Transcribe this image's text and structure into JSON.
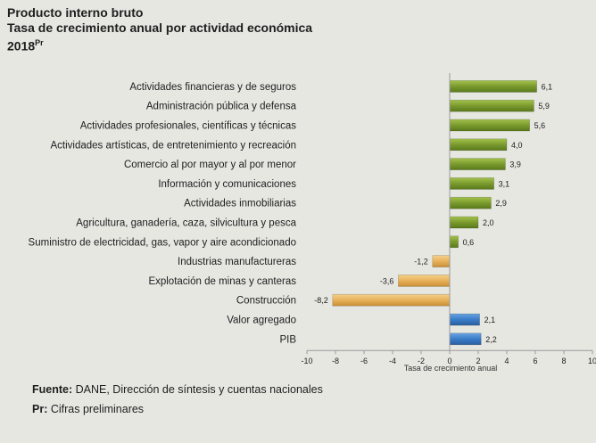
{
  "header": {
    "title": "Producto interno bruto",
    "subtitle": "Tasa de crecimiento anual por actividad económica",
    "year": "2018",
    "year_superscript": "Pr"
  },
  "footer": {
    "source_label": "Fuente:",
    "source_text": "DANE, Dirección de síntesis y cuentas nacionales",
    "note_label": "Pr:",
    "note_text": "Cifras preliminares"
  },
  "colors": {
    "positive": "#7a9a2e",
    "negative": "#e8b25a",
    "aggregate": "#3a7cc9"
  },
  "chart_data": {
    "type": "bar",
    "orientation": "horizontal",
    "title": "Tasa de crecimiento anual por actividad económica",
    "xlabel": "Tasa de crecimiento anual",
    "ylabel": "",
    "xlim": [
      -10,
      10
    ],
    "xticks": [
      -10,
      -8,
      -6,
      -4,
      -2,
      0,
      2,
      4,
      6,
      8,
      10
    ],
    "xtick_labels": [
      "-10",
      "-8",
      "-6",
      "-4",
      "-2",
      "0",
      "2",
      "4",
      "6",
      "8",
      "10"
    ],
    "categories": [
      "Actividades financieras y de seguros",
      "Administración pública y defensa",
      "Actividades profesionales, científicas y técnicas",
      "Actividades artísticas, de entretenimiento y recreación",
      "Comercio al por mayor y al por menor",
      "Información y comunicaciones",
      "Actividades inmobiliarias",
      "Agricultura, ganadería, caza, silvicultura y pesca",
      "Suministro de electricidad, gas, vapor y aire acondicionado",
      "Industrias manufactureras",
      "Explotación de minas y canteras",
      "Construcción",
      "Valor agregado",
      "PIB"
    ],
    "values": [
      6.1,
      5.9,
      5.6,
      4.0,
      3.9,
      3.1,
      2.9,
      2.0,
      0.6,
      -1.2,
      -3.6,
      -8.2,
      2.1,
      2.2
    ],
    "value_labels": [
      "6,1",
      "5,9",
      "5,6",
      "4,0",
      "3,9",
      "3,1",
      "2,9",
      "2,0",
      "0,6",
      "-1,2",
      "-3,6",
      "-8,2",
      "2,1",
      "2,2"
    ],
    "groups": [
      "sector",
      "sector",
      "sector",
      "sector",
      "sector",
      "sector",
      "sector",
      "sector",
      "sector",
      "sector",
      "sector",
      "sector",
      "aggregate",
      "aggregate"
    ]
  }
}
